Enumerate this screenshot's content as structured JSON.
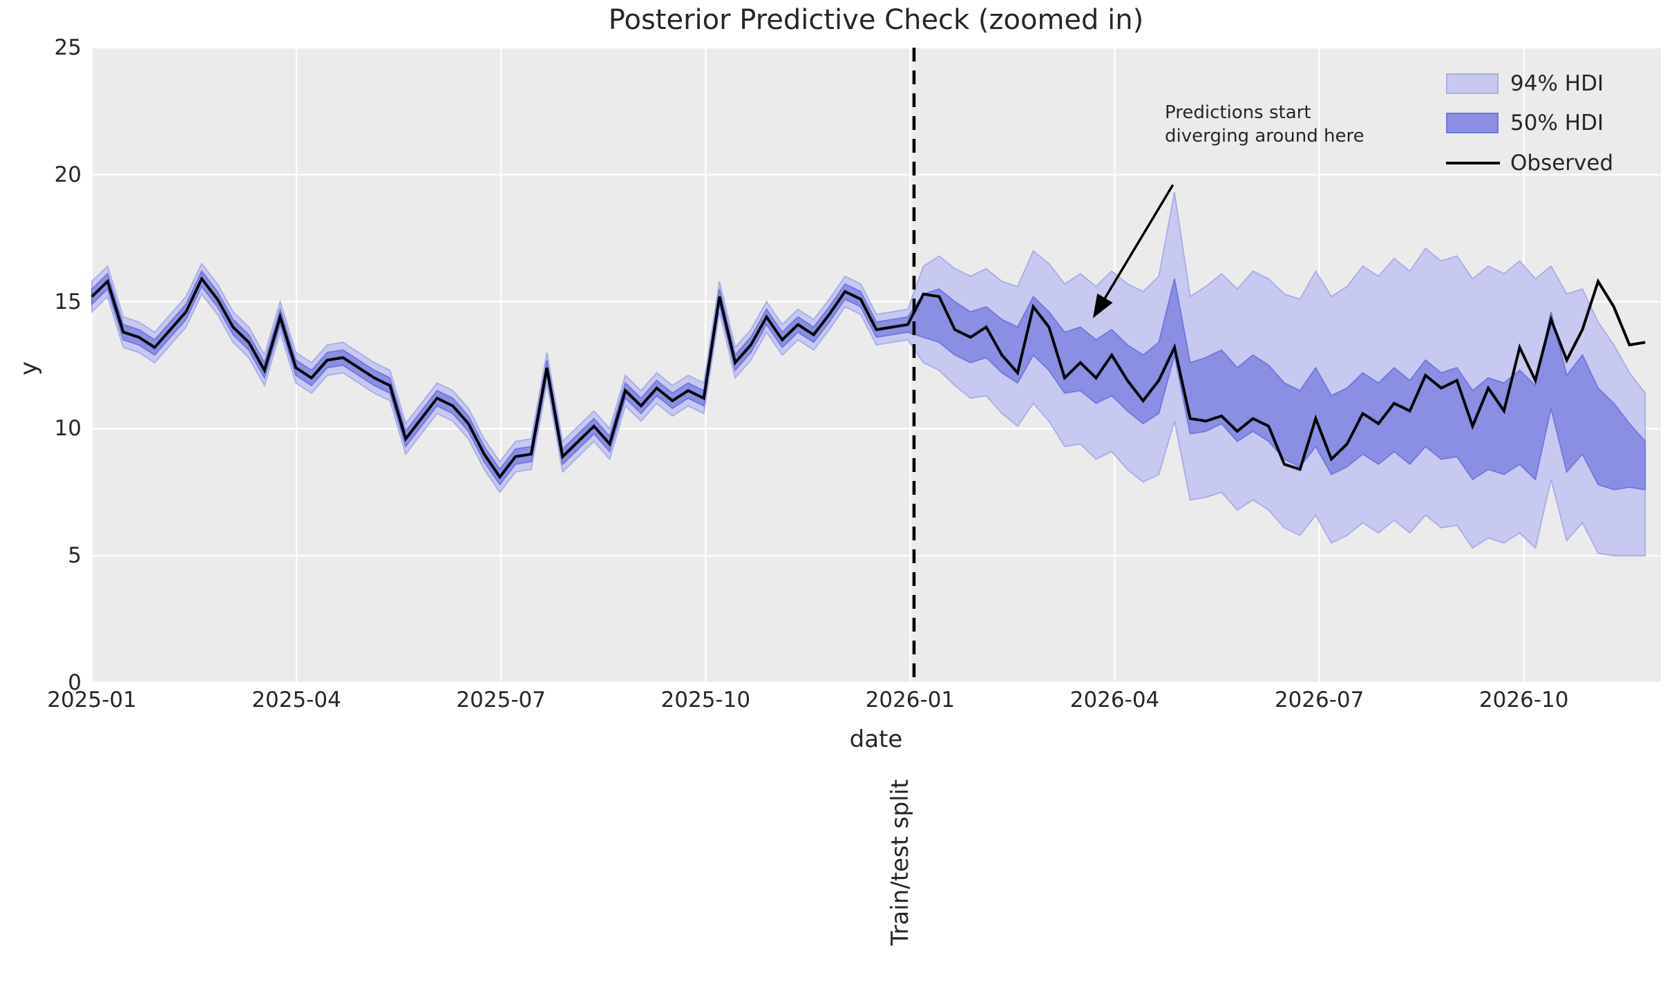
{
  "title": "Posterior Predictive Check (zoomed in)",
  "axes": {
    "xlabel": "date",
    "ylabel": "y",
    "ylim": [
      0,
      25
    ],
    "y_ticks": [
      0,
      5,
      10,
      15,
      20,
      25
    ],
    "x_ticks": [
      {
        "label": "2025-01",
        "month": 0
      },
      {
        "label": "2025-04",
        "month": 3
      },
      {
        "label": "2025-07",
        "month": 6
      },
      {
        "label": "2025-10",
        "month": 9
      },
      {
        "label": "2026-01",
        "month": 12
      },
      {
        "label": "2026-04",
        "month": 15
      },
      {
        "label": "2026-07",
        "month": 18
      },
      {
        "label": "2026-10",
        "month": 21
      }
    ]
  },
  "split": {
    "label": "Train/test split",
    "week": 52.4
  },
  "legend": {
    "items": [
      {
        "label": "94% HDI",
        "type": "band",
        "color": "#c7c9f0",
        "edge": "#a9ace9"
      },
      {
        "label": "50% HDI",
        "type": "band",
        "color": "#8a8fe3",
        "edge": "#7177dd"
      },
      {
        "label": "Observed",
        "type": "line",
        "color": "#000000"
      }
    ]
  },
  "annotation": {
    "line1": "Predictions start",
    "line2": "diverging around here",
    "text_at": {
      "week": 68.3,
      "y": 22.85
    },
    "arrow_from": {
      "week": 68.9,
      "y": 19.6
    },
    "arrow_to": {
      "week": 63.8,
      "y": 14.35
    }
  },
  "colors": {
    "plot_background": "#ebebeb",
    "grid": "#ffffff",
    "hdi94_fill": "#c7c9f0",
    "hdi94_edge": "#a7abe9",
    "hdi50_fill": "#8a8fe3",
    "hdi50_edge": "#6f76dd",
    "observed": "#000000",
    "split_line": "#000000",
    "text": "#262626"
  },
  "chart_data": {
    "type": "line",
    "title": "Posterior Predictive Check (zoomed in)",
    "xlabel": "date",
    "ylabel": "y",
    "ylim": [
      0,
      25
    ],
    "x_start_date": "2025-01",
    "x_step": "weekly",
    "weeks_per_month": 4.345,
    "n_points": 100,
    "split_week": 52.4,
    "legend_entries": [
      "94% HDI",
      "50% HDI",
      "Observed"
    ],
    "observed": [
      15.2,
      15.8,
      13.8,
      13.6,
      13.2,
      13.9,
      14.6,
      15.9,
      15.1,
      14.0,
      13.4,
      12.3,
      14.4,
      12.4,
      12.0,
      12.7,
      12.8,
      12.4,
      12.0,
      11.7,
      9.6,
      10.4,
      11.2,
      10.9,
      10.2,
      9.0,
      8.1,
      8.9,
      9.0,
      12.4,
      8.9,
      9.5,
      10.1,
      9.4,
      11.5,
      10.9,
      11.6,
      11.1,
      11.5,
      11.2,
      15.2,
      12.6,
      13.3,
      14.4,
      13.5,
      14.1,
      13.7,
      14.5,
      15.4,
      15.1,
      13.9,
      14.0,
      14.1,
      15.3,
      15.2,
      13.9,
      13.6,
      14.0,
      12.9,
      12.2,
      14.8,
      14.0,
      12.0,
      12.6,
      12.0,
      12.9,
      11.9,
      11.1,
      11.9,
      13.2,
      10.4,
      10.3,
      10.5,
      9.9,
      10.4,
      10.1,
      8.6,
      8.4,
      10.4,
      8.8,
      9.4,
      10.6,
      10.2,
      11.0,
      10.7,
      12.1,
      11.6,
      11.9,
      10.1,
      11.6,
      10.7,
      13.2,
      11.9,
      14.3,
      12.7,
      13.9,
      15.8,
      14.8,
      13.3,
      13.4
    ],
    "hdi94_upper": [
      15.8,
      16.4,
      14.4,
      14.2,
      13.8,
      14.5,
      15.2,
      16.5,
      15.7,
      14.6,
      14.0,
      12.9,
      15.0,
      13.0,
      12.6,
      13.3,
      13.4,
      13.0,
      12.6,
      12.3,
      10.2,
      11.0,
      11.8,
      11.5,
      10.8,
      9.6,
      8.7,
      9.5,
      9.6,
      13.0,
      9.5,
      10.1,
      10.7,
      10.0,
      12.1,
      11.5,
      12.2,
      11.7,
      12.1,
      11.8,
      15.8,
      13.2,
      13.9,
      15.0,
      14.1,
      14.7,
      14.3,
      15.1,
      16.0,
      15.7,
      14.5,
      14.6,
      14.7,
      16.4,
      16.8,
      16.3,
      16.0,
      16.3,
      15.8,
      15.6,
      17.0,
      16.5,
      15.7,
      16.1,
      15.6,
      16.2,
      15.7,
      15.4,
      16.0,
      19.3,
      15.2,
      15.6,
      16.1,
      15.5,
      16.2,
      15.9,
      15.3,
      15.1,
      16.2,
      15.2,
      15.6,
      16.4,
      16.0,
      16.7,
      16.2,
      17.1,
      16.6,
      16.8,
      15.9,
      16.4,
      16.1,
      16.6,
      15.9,
      16.4,
      15.3,
      15.5,
      14.2,
      13.3,
      12.2,
      11.4
    ],
    "hdi94_lower": [
      14.6,
      15.2,
      13.2,
      13.0,
      12.6,
      13.3,
      14.0,
      15.3,
      14.5,
      13.4,
      12.8,
      11.7,
      13.8,
      11.8,
      11.4,
      12.1,
      12.2,
      11.8,
      11.4,
      11.1,
      9.0,
      9.8,
      10.6,
      10.3,
      9.6,
      8.4,
      7.5,
      8.3,
      8.4,
      11.8,
      8.3,
      8.9,
      9.5,
      8.8,
      10.9,
      10.3,
      11.0,
      10.5,
      10.9,
      10.6,
      14.6,
      12.0,
      12.7,
      13.8,
      12.9,
      13.5,
      13.1,
      13.9,
      14.8,
      14.5,
      13.3,
      13.4,
      13.5,
      12.6,
      12.3,
      11.7,
      11.2,
      11.3,
      10.6,
      10.1,
      11.0,
      10.3,
      9.3,
      9.4,
      8.8,
      9.1,
      8.4,
      7.9,
      8.2,
      10.3,
      7.2,
      7.3,
      7.5,
      6.8,
      7.2,
      6.8,
      6.1,
      5.8,
      6.6,
      5.5,
      5.8,
      6.3,
      5.9,
      6.4,
      5.9,
      6.6,
      6.1,
      6.2,
      5.3,
      5.7,
      5.5,
      5.9,
      5.3,
      8.0,
      5.6,
      6.3,
      5.1,
      5.0,
      5.0,
      5.0
    ],
    "hdi50_upper": [
      15.5,
      16.1,
      14.1,
      13.9,
      13.5,
      14.2,
      14.9,
      16.2,
      15.4,
      14.3,
      13.7,
      12.6,
      14.7,
      12.7,
      12.3,
      13.0,
      13.1,
      12.7,
      12.3,
      12.0,
      9.9,
      10.7,
      11.5,
      11.2,
      10.5,
      9.3,
      8.4,
      9.2,
      9.3,
      12.7,
      9.2,
      9.8,
      10.4,
      9.7,
      11.8,
      11.2,
      11.9,
      11.4,
      11.8,
      11.5,
      15.5,
      12.9,
      13.6,
      14.7,
      13.8,
      14.4,
      14.0,
      14.8,
      15.7,
      15.4,
      14.2,
      14.3,
      14.4,
      15.3,
      15.5,
      15.0,
      14.6,
      14.8,
      14.3,
      14.0,
      15.2,
      14.6,
      13.8,
      14.0,
      13.5,
      13.9,
      13.3,
      12.9,
      13.4,
      15.9,
      12.6,
      12.8,
      13.1,
      12.4,
      12.9,
      12.5,
      11.8,
      11.5,
      12.4,
      11.3,
      11.6,
      12.2,
      11.8,
      12.4,
      11.9,
      12.7,
      12.2,
      12.4,
      11.5,
      12.0,
      11.8,
      12.3,
      11.7,
      14.6,
      12.1,
      12.9,
      11.6,
      11.0,
      10.2,
      9.5
    ],
    "hdi50_lower": [
      14.9,
      15.5,
      13.5,
      13.3,
      12.9,
      13.6,
      14.3,
      15.6,
      14.8,
      13.7,
      13.1,
      12.0,
      14.1,
      12.1,
      11.7,
      12.4,
      12.5,
      12.1,
      11.7,
      11.4,
      9.3,
      10.1,
      10.9,
      10.6,
      9.9,
      8.7,
      7.8,
      8.6,
      8.7,
      12.1,
      8.6,
      9.2,
      9.8,
      9.1,
      11.2,
      10.6,
      11.3,
      10.8,
      11.2,
      10.9,
      14.9,
      12.3,
      13.0,
      14.1,
      13.2,
      13.8,
      13.4,
      14.2,
      15.1,
      14.8,
      13.6,
      13.7,
      13.8,
      13.6,
      13.4,
      12.9,
      12.6,
      12.8,
      12.2,
      11.8,
      12.9,
      12.3,
      11.4,
      11.5,
      11.0,
      11.3,
      10.7,
      10.2,
      10.6,
      12.9,
      9.8,
      9.9,
      10.2,
      9.5,
      9.9,
      9.5,
      8.8,
      8.5,
      9.3,
      8.2,
      8.5,
      9.0,
      8.6,
      9.1,
      8.6,
      9.3,
      8.8,
      8.9,
      8.0,
      8.4,
      8.2,
      8.6,
      8.0,
      10.8,
      8.3,
      9.0,
      7.8,
      7.6,
      7.7,
      7.6
    ]
  }
}
